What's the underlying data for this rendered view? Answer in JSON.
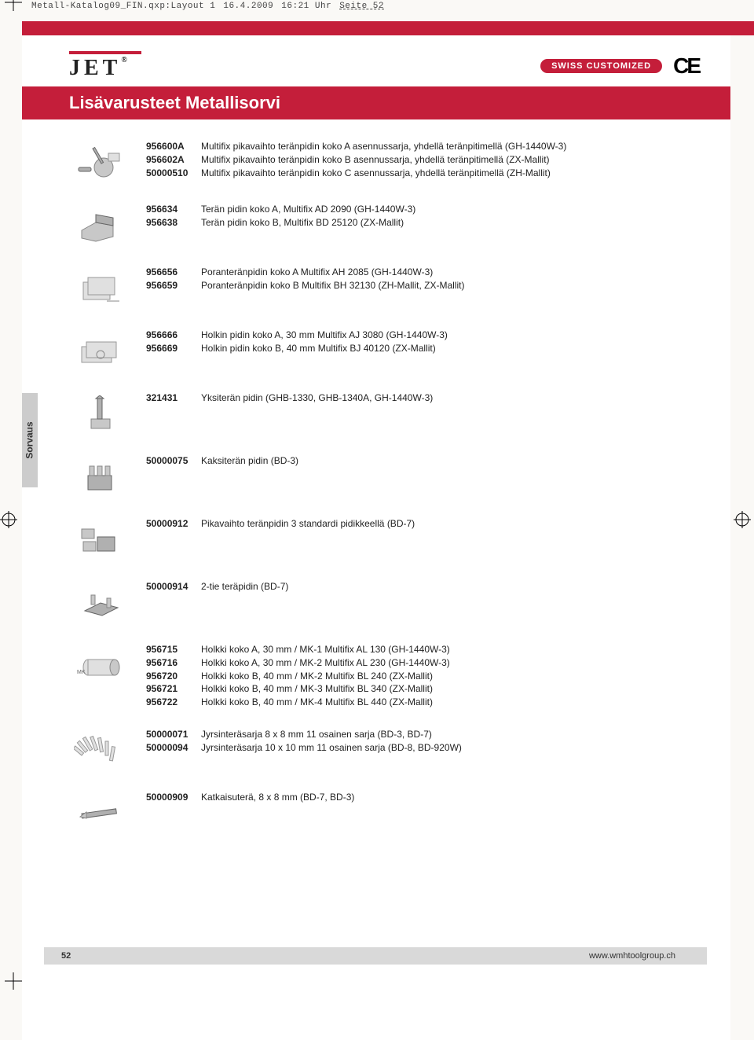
{
  "print_header": {
    "file": "Metall-Katalog09_FIN.qxp:Layout 1",
    "date": "16.4.2009",
    "time": "16:21 Uhr",
    "page": "Seite 52"
  },
  "logo_text": "JET",
  "swiss_badge": "SWISS CUSTOMIZED",
  "ce_mark": "CE",
  "title": "Lisävarusteet Metallisorvi",
  "side_tab": "Sorvaus",
  "page_number": "52",
  "footer_url": "www.wmhtoolgroup.ch",
  "blocks": [
    {
      "icon": "toolpost-kit",
      "rows": [
        {
          "code": "956600A",
          "desc": "Multifix pikavaihto teränpidin koko A asennussarja, yhdellä teränpitimellä (GH-1440W-3)"
        },
        {
          "code": "956602A",
          "desc": "Multifix pikavaihto teränpidin koko B asennussarja, yhdellä teränpitimellä (ZX-Mallit)"
        },
        {
          "code": "50000510",
          "desc": "Multifix pikavaihto teränpidin koko C asennussarja, yhdellä teränpitimellä (ZH-Mallit)"
        }
      ]
    },
    {
      "icon": "holder-block",
      "rows": [
        {
          "code": "956634",
          "desc": "Terän pidin koko A, Multifix AD 2090 (GH-1440W-3)"
        },
        {
          "code": "956638",
          "desc": "Terän pidin koko B, Multifix BD 25120 (ZX-Mallit)"
        }
      ]
    },
    {
      "icon": "holder-wire",
      "rows": [
        {
          "code": "956656",
          "desc": "Poranteränpidin koko A Multifix AH 2085 (GH-1440W-3)"
        },
        {
          "code": "956659",
          "desc": "Poranteränpidin koko B Multifix BH 32130 (ZH-Mallit, ZX-Mallit)"
        }
      ]
    },
    {
      "icon": "holder-wire2",
      "rows": [
        {
          "code": "956666",
          "desc": "Holkin pidin koko A, 30 mm Multifix AJ 3080 (GH-1440W-3)"
        },
        {
          "code": "956669",
          "desc": "Holkin pidin koko B, 40 mm Multifix BJ 40120 (ZX-Mallit)"
        }
      ]
    },
    {
      "icon": "single-holder",
      "rows": [
        {
          "code": "321431",
          "desc": "Yksiterän pidin  (GHB-1330, GHB-1340A, GH-1440W-3)"
        }
      ]
    },
    {
      "icon": "quad-holder",
      "rows": [
        {
          "code": "50000075",
          "desc": "Kaksiterän pidin (BD-3)"
        }
      ]
    },
    {
      "icon": "quick-change",
      "rows": [
        {
          "code": "50000912",
          "desc": "Pikavaihto teränpidin 3 standardi pidikkeellä (BD-7)"
        }
      ]
    },
    {
      "icon": "plate-holder",
      "rows": [
        {
          "code": "50000914",
          "desc": "2-tie teräpidin (BD-7)"
        }
      ]
    },
    {
      "icon": "sleeve",
      "rows": [
        {
          "code": "956715",
          "desc": "Holkki koko A, 30 mm / MK-1 Multifix AL 130 (GH-1440W-3)"
        },
        {
          "code": "956716",
          "desc": "Holkki koko A, 30 mm / MK-2 Multifix AL 230 (GH-1440W-3)"
        },
        {
          "code": "956720",
          "desc": "Holkki koko B, 40 mm / MK-2 Multifix BL 240 (ZX-Mallit)"
        },
        {
          "code": "956721",
          "desc": "Holkki koko B, 40 mm / MK-3 Multifix BL 340 (ZX-Mallit)"
        },
        {
          "code": "956722",
          "desc": "Holkki koko B, 40 mm / MK-4 Multifix BL 440 (ZX-Mallit)"
        }
      ]
    },
    {
      "icon": "cutter-set",
      "rows": [
        {
          "code": "50000071",
          "desc": "Jyrsinteräsarja 8 x 8 mm 11 osainen sarja (BD-3, BD-7)"
        },
        {
          "code": "50000094",
          "desc": "Jyrsinteräsarja 10 x 10 mm 11 osainen sarja (BD-8, BD-920W)"
        }
      ]
    },
    {
      "icon": "cutoff-tool",
      "rows": [
        {
          "code": "50000909",
          "desc": "Katkaisuterä, 8 x 8 mm (BD-7, BD-3)"
        }
      ]
    }
  ],
  "colors": {
    "red": "#c41e3a",
    "grey_tab": "#cccccc",
    "footer_grey": "#d9d9d9",
    "bg": "#faf9f6"
  },
  "fontsize": {
    "title": 22,
    "body": 12,
    "footer": 11,
    "print_header": 11
  }
}
